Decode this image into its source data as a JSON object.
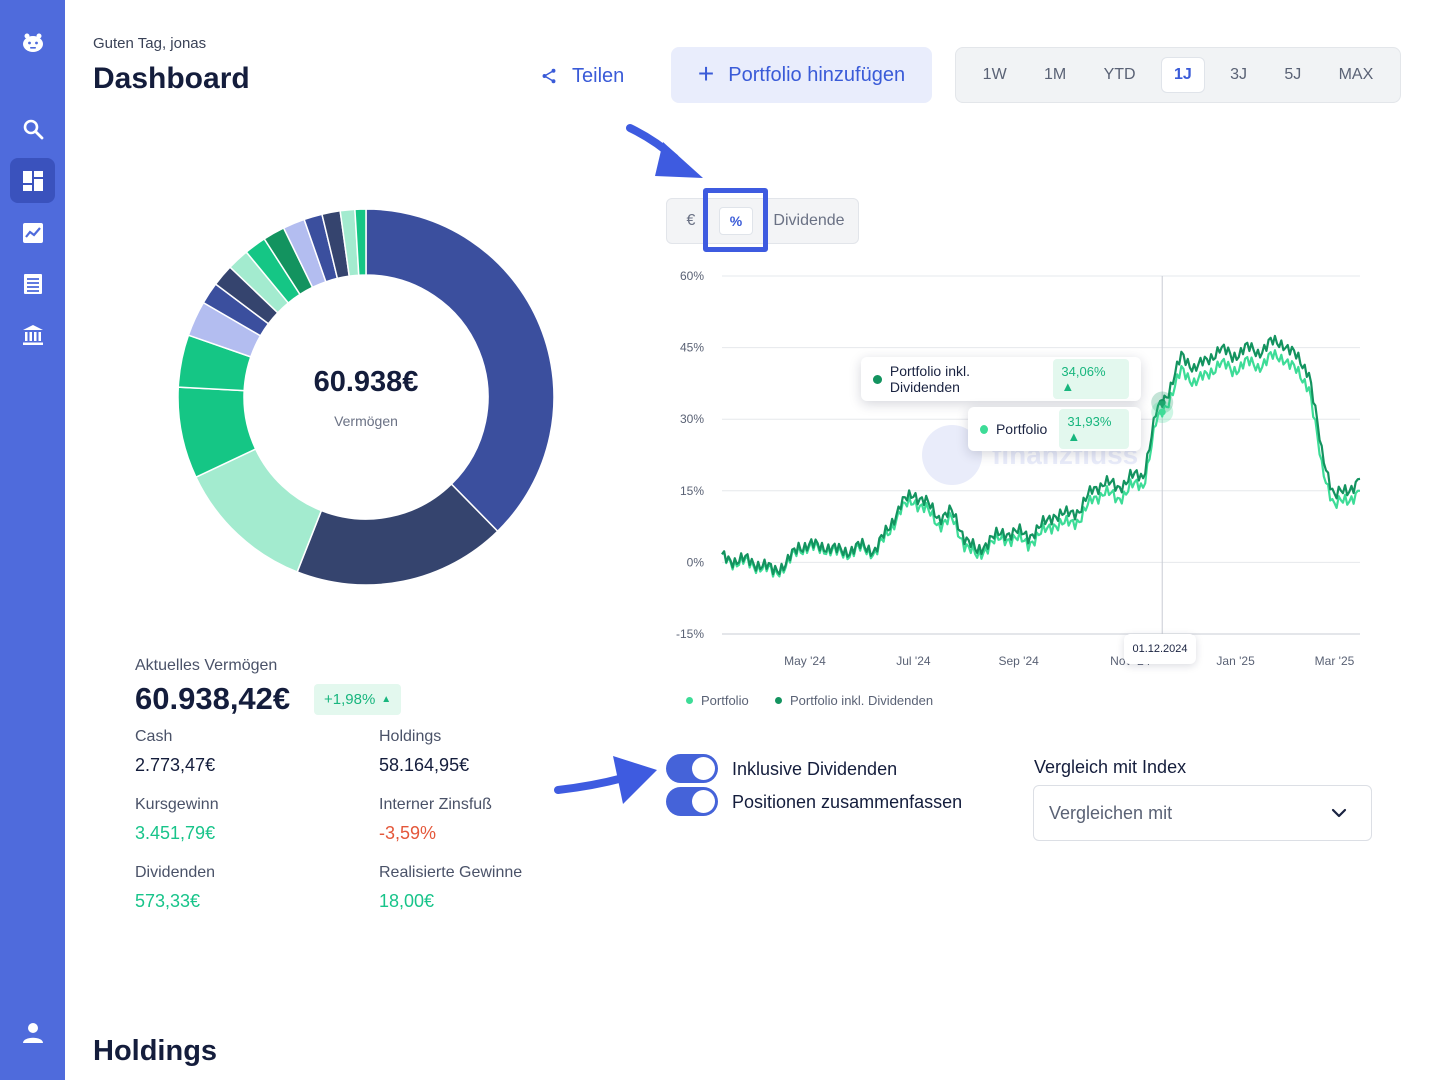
{
  "header": {
    "greeting": "Guten Tag, jonas",
    "title": "Dashboard",
    "share_label": "Teilen",
    "add_portfolio_label": "Portfolio hinzufügen"
  },
  "time_ranges": [
    "1W",
    "1M",
    "YTD",
    "1J",
    "3J",
    "5J",
    "MAX"
  ],
  "active_time_range": "1J",
  "sidebar": {
    "items": [
      "logo-icon",
      "search-icon",
      "dashboard-icon",
      "chart-icon",
      "list-icon",
      "bank-icon",
      "user-icon"
    ],
    "active": "dashboard-icon"
  },
  "donut": {
    "center_value": "60.938€",
    "center_label": "Vermögen",
    "slices": [
      {
        "value": 36.0,
        "color": "#3b4f9e"
      },
      {
        "value": 17.5,
        "color": "#35446e"
      },
      {
        "value": 11.5,
        "color": "#a3ebcf"
      },
      {
        "value": 7.5,
        "color": "#15c685"
      },
      {
        "value": 4.3,
        "color": "#15c685"
      },
      {
        "value": 2.9,
        "color": "#b3bdf0"
      },
      {
        "value": 1.8,
        "color": "#3b4f9e"
      },
      {
        "value": 1.8,
        "color": "#35446e"
      },
      {
        "value": 1.8,
        "color": "#a3ebcf"
      },
      {
        "value": 1.8,
        "color": "#15c685"
      },
      {
        "value": 1.8,
        "color": "#13935f"
      },
      {
        "value": 1.8,
        "color": "#b3bdf0"
      },
      {
        "value": 1.5,
        "color": "#3b4f9e"
      },
      {
        "value": 1.5,
        "color": "#35446e"
      },
      {
        "value": 1.2,
        "color": "#a3ebcf"
      },
      {
        "value": 0.9,
        "color": "#15c685"
      }
    ]
  },
  "stats": {
    "current_label": "Aktuelles Vermögen",
    "current_value": "60.938,42€",
    "current_change": "+1,98%",
    "cash_label": "Cash",
    "cash_value": "2.773,47€",
    "holdings_label": "Holdings",
    "holdings_value": "58.164,95€",
    "gain_label": "Kursgewinn",
    "gain_value": "3.451,79€",
    "irr_label": "Interner Zinsfuß",
    "irr_value": "-3,59%",
    "dividends_label": "Dividenden",
    "dividends_value": "573,33€",
    "realized_label": "Realisierte Gewinne",
    "realized_value": "18,00€"
  },
  "chart_modes": {
    "euro": "€",
    "percent": "%",
    "dividend": "Dividende",
    "active": "percent"
  },
  "chart_data": {
    "type": "line",
    "ylim": [
      -15,
      60
    ],
    "y_ticks": [
      "60%",
      "45%",
      "30%",
      "15%",
      "0%",
      "-15%"
    ],
    "y_tick_values": [
      60,
      45,
      30,
      15,
      0,
      -15
    ],
    "x_ticks": [
      "May '24",
      "Jul '24",
      "Sep '24",
      "Nov '24",
      "Jan '25",
      "Mar '25"
    ],
    "x_tick_positions": [
      0.13,
      0.3,
      0.465,
      0.64,
      0.805,
      0.96
    ],
    "x": [
      0.0,
      0.02,
      0.04,
      0.06,
      0.08,
      0.1,
      0.12,
      0.14,
      0.16,
      0.18,
      0.2,
      0.22,
      0.24,
      0.26,
      0.28,
      0.3,
      0.32,
      0.34,
      0.36,
      0.38,
      0.4,
      0.42,
      0.44,
      0.46,
      0.48,
      0.5,
      0.52,
      0.54,
      0.56,
      0.58,
      0.6,
      0.62,
      0.64,
      0.66,
      0.68,
      0.7,
      0.72,
      0.74,
      0.76,
      0.78,
      0.8,
      0.82,
      0.84,
      0.86,
      0.88,
      0.9,
      0.92,
      0.94,
      0.96,
      0.98,
      1.0
    ],
    "series": [
      {
        "name": "Portfolio",
        "color": "#3ddc97",
        "values": [
          1,
          0,
          0,
          -1,
          -2,
          -1,
          3,
          3,
          3,
          2,
          2,
          3,
          2,
          6,
          11,
          13,
          11,
          8,
          9,
          4,
          1,
          4,
          5,
          5,
          4,
          6,
          8,
          8,
          9,
          13,
          15,
          13,
          16,
          16,
          29,
          34,
          40,
          38,
          39,
          42,
          40,
          42,
          41,
          43,
          43,
          40,
          37,
          20,
          12,
          13,
          15
        ]
      },
      {
        "name": "Portfolio inkl. Dividenden",
        "color": "#13935f",
        "values": [
          1,
          0.5,
          0.5,
          -0.5,
          -1.5,
          -0.5,
          3.5,
          3.5,
          3.5,
          2.5,
          2.5,
          3.5,
          2.5,
          7,
          12,
          14.5,
          12.5,
          9.5,
          10.5,
          5.5,
          2,
          5,
          6,
          6.5,
          5.5,
          7.5,
          10,
          10,
          11,
          15,
          17,
          15.5,
          18,
          18,
          31,
          36,
          43,
          41,
          42,
          45,
          43,
          45,
          44,
          46,
          46,
          43,
          40,
          23,
          14,
          15,
          17.5
        ]
      }
    ],
    "tooltip_date": "01.12.2024",
    "tooltip_portfolio": "31,93%",
    "tooltip_portfolio_div": "34,06%",
    "legend": [
      "Portfolio",
      "Portfolio inkl. Dividenden"
    ]
  },
  "watermark_text": "finanzfluss",
  "toggles": {
    "dividends_label": "Inklusive Dividenden",
    "dividends_on": true,
    "merge_label": "Positionen zusammenfassen",
    "merge_on": true
  },
  "compare": {
    "label": "Vergleich mit Index",
    "placeholder": "Vergleichen mit"
  },
  "holdings_title": "Holdings"
}
